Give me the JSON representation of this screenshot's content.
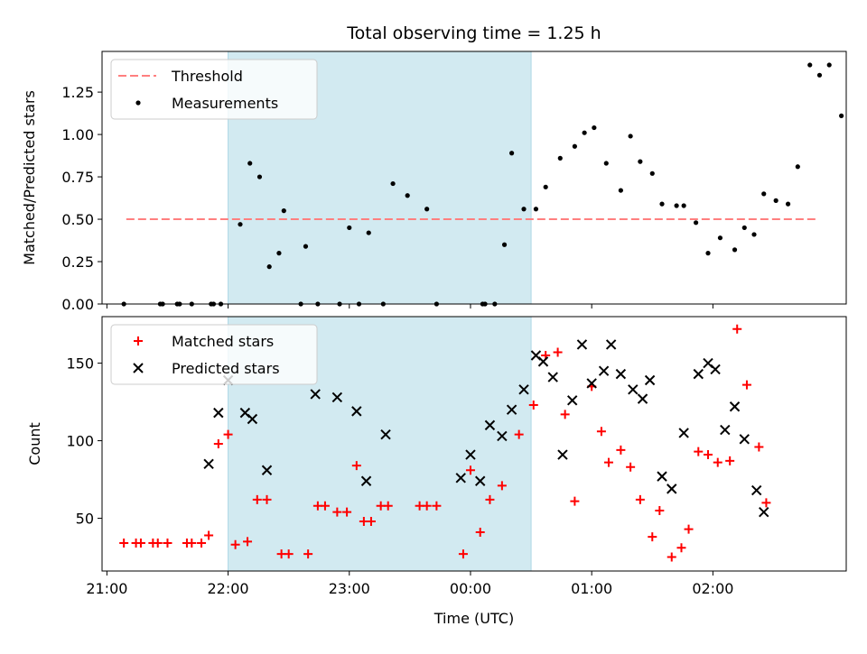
{
  "title": "Total observing time = 1.25 h",
  "colors": {
    "threshold": "#ff7f7f",
    "measurement": "#000000",
    "matched": "#ff0000",
    "predicted": "#000000",
    "shade": "#add8e6"
  },
  "chart_data": [
    {
      "type": "scatter",
      "ylabel": "Matched/Predicted stars",
      "xlim": [
        -0.52,
        2.55
      ],
      "ylim": [
        0,
        1.49
      ],
      "yticks": [
        0.0,
        0.25,
        0.5,
        0.75,
        1.0,
        1.25
      ],
      "ytick_labels": [
        "0.00",
        "0.25",
        "0.50",
        "0.75",
        "1.00",
        "1.25"
      ],
      "shaded_span": [
        0.0,
        1.25
      ],
      "legend": {
        "position": "upper left",
        "entries": [
          "Threshold",
          "Measurements"
        ]
      },
      "threshold": {
        "name": "Threshold",
        "y": 0.5,
        "x": [
          -0.42,
          2.43
        ]
      },
      "series": [
        {
          "name": "Measurements",
          "points": [
            [
              -0.43,
              0.0
            ],
            [
              -0.28,
              0.0
            ],
            [
              -0.27,
              0.0
            ],
            [
              -0.21,
              0.0
            ],
            [
              -0.2,
              0.0
            ],
            [
              -0.15,
              0.0
            ],
            [
              -0.07,
              0.0
            ],
            [
              -0.06,
              0.0
            ],
            [
              -0.03,
              0.0
            ],
            [
              0.05,
              0.47
            ],
            [
              0.09,
              0.83
            ],
            [
              0.13,
              0.75
            ],
            [
              0.17,
              0.22
            ],
            [
              0.21,
              0.3
            ],
            [
              0.23,
              0.55
            ],
            [
              0.3,
              0.0
            ],
            [
              0.32,
              0.34
            ],
            [
              0.37,
              0.0
            ],
            [
              0.46,
              0.0
            ],
            [
              0.5,
              0.45
            ],
            [
              0.54,
              0.0
            ],
            [
              0.58,
              0.42
            ],
            [
              0.64,
              0.0
            ],
            [
              0.68,
              0.71
            ],
            [
              0.74,
              0.64
            ],
            [
              0.82,
              0.56
            ],
            [
              0.86,
              0.0
            ],
            [
              1.05,
              0.0
            ],
            [
              1.06,
              0.0
            ],
            [
              1.1,
              0.0
            ],
            [
              1.14,
              0.35
            ],
            [
              1.17,
              0.89
            ],
            [
              1.22,
              0.56
            ],
            [
              1.27,
              0.56
            ],
            [
              1.31,
              0.69
            ],
            [
              1.37,
              0.86
            ],
            [
              1.43,
              0.93
            ],
            [
              1.47,
              1.01
            ],
            [
              1.51,
              1.04
            ],
            [
              1.56,
              0.83
            ],
            [
              1.62,
              0.67
            ],
            [
              1.66,
              0.99
            ],
            [
              1.7,
              0.84
            ],
            [
              1.75,
              0.77
            ],
            [
              1.79,
              0.59
            ],
            [
              1.85,
              0.58
            ],
            [
              1.88,
              0.58
            ],
            [
              1.93,
              0.48
            ],
            [
              1.98,
              0.3
            ],
            [
              2.03,
              0.39
            ],
            [
              2.09,
              0.32
            ],
            [
              2.13,
              0.45
            ],
            [
              2.17,
              0.41
            ],
            [
              2.21,
              0.65
            ],
            [
              2.26,
              0.61
            ],
            [
              2.31,
              0.59
            ],
            [
              2.35,
              0.81
            ],
            [
              2.4,
              1.41
            ],
            [
              2.44,
              1.35
            ],
            [
              2.48,
              1.41
            ],
            [
              2.53,
              1.11
            ]
          ]
        }
      ]
    },
    {
      "type": "scatter",
      "xlabel": "Time (UTC)",
      "ylabel": "Count",
      "xlim": [
        -0.52,
        2.55
      ],
      "ylim": [
        16,
        180
      ],
      "xticks": [
        -0.5,
        0.0,
        0.5,
        1.0,
        1.5,
        2.0
      ],
      "xtick_labels": [
        "21:00",
        "22:00",
        "23:00",
        "00:00",
        "01:00",
        "02:00"
      ],
      "yticks": [
        50,
        100,
        150
      ],
      "ytick_labels": [
        "50",
        "100",
        "150"
      ],
      "shaded_span": [
        0.0,
        1.25
      ],
      "legend": {
        "position": "upper left",
        "entries": [
          "Matched stars",
          "Predicted stars"
        ]
      },
      "series": [
        {
          "name": "Matched stars",
          "marker": "plus",
          "points": [
            [
              -0.43,
              34
            ],
            [
              -0.38,
              34
            ],
            [
              -0.36,
              34
            ],
            [
              -0.31,
              34
            ],
            [
              -0.29,
              34
            ],
            [
              -0.25,
              34
            ],
            [
              -0.17,
              34
            ],
            [
              -0.15,
              34
            ],
            [
              -0.11,
              34
            ],
            [
              -0.08,
              39
            ],
            [
              -0.04,
              98
            ],
            [
              0.0,
              104
            ],
            [
              0.03,
              33
            ],
            [
              0.08,
              35
            ],
            [
              0.12,
              62
            ],
            [
              0.16,
              62
            ],
            [
              0.22,
              27
            ],
            [
              0.25,
              27
            ],
            [
              0.33,
              27
            ],
            [
              0.37,
              58
            ],
            [
              0.4,
              58
            ],
            [
              0.45,
              54
            ],
            [
              0.49,
              54
            ],
            [
              0.53,
              84
            ],
            [
              0.56,
              48
            ],
            [
              0.59,
              48
            ],
            [
              0.63,
              58
            ],
            [
              0.66,
              58
            ],
            [
              0.79,
              58
            ],
            [
              0.82,
              58
            ],
            [
              0.86,
              58
            ],
            [
              0.97,
              27
            ],
            [
              1.0,
              81
            ],
            [
              1.04,
              41
            ],
            [
              1.08,
              62
            ],
            [
              1.13,
              71
            ],
            [
              1.2,
              104
            ],
            [
              1.26,
              123
            ],
            [
              1.31,
              155
            ],
            [
              1.36,
              157
            ],
            [
              1.39,
              117
            ],
            [
              1.43,
              61
            ],
            [
              1.5,
              135
            ],
            [
              1.54,
              106
            ],
            [
              1.57,
              86
            ],
            [
              1.62,
              94
            ],
            [
              1.66,
              83
            ],
            [
              1.7,
              62
            ],
            [
              1.75,
              38
            ],
            [
              1.78,
              55
            ],
            [
              1.83,
              25
            ],
            [
              1.87,
              31
            ],
            [
              1.9,
              43
            ],
            [
              1.94,
              93
            ],
            [
              1.98,
              91
            ],
            [
              2.02,
              86
            ],
            [
              2.07,
              87
            ],
            [
              2.1,
              172
            ],
            [
              2.14,
              136
            ],
            [
              2.19,
              96
            ],
            [
              2.22,
              60
            ]
          ]
        },
        {
          "name": "Predicted stars",
          "marker": "x",
          "points": [
            [
              -0.08,
              85
            ],
            [
              -0.04,
              118
            ],
            [
              0.0,
              139
            ],
            [
              0.07,
              118
            ],
            [
              0.1,
              114
            ],
            [
              0.16,
              81
            ],
            [
              0.36,
              130
            ],
            [
              0.45,
              128
            ],
            [
              0.53,
              119
            ],
            [
              0.57,
              74
            ],
            [
              0.65,
              104
            ],
            [
              0.96,
              76
            ],
            [
              1.0,
              91
            ],
            [
              1.04,
              74
            ],
            [
              1.08,
              110
            ],
            [
              1.13,
              103
            ],
            [
              1.17,
              120
            ],
            [
              1.22,
              133
            ],
            [
              1.27,
              155
            ],
            [
              1.3,
              151
            ],
            [
              1.34,
              141
            ],
            [
              1.38,
              91
            ],
            [
              1.42,
              126
            ],
            [
              1.46,
              162
            ],
            [
              1.5,
              137
            ],
            [
              1.55,
              145
            ],
            [
              1.58,
              162
            ],
            [
              1.62,
              143
            ],
            [
              1.67,
              133
            ],
            [
              1.71,
              127
            ],
            [
              1.74,
              139
            ],
            [
              1.79,
              77
            ],
            [
              1.83,
              69
            ],
            [
              1.88,
              105
            ],
            [
              1.94,
              143
            ],
            [
              1.98,
              150
            ],
            [
              2.01,
              146
            ],
            [
              2.05,
              107
            ],
            [
              2.09,
              122
            ],
            [
              2.13,
              101
            ],
            [
              2.18,
              68
            ],
            [
              2.21,
              54
            ]
          ]
        }
      ]
    }
  ]
}
